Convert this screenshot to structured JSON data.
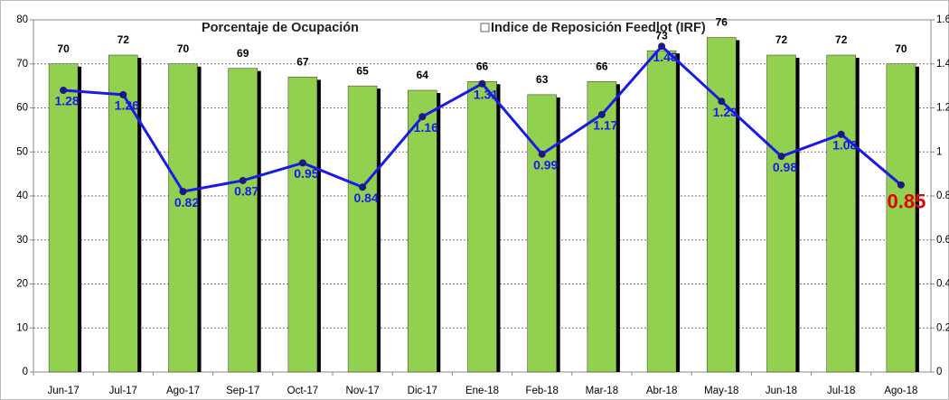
{
  "chart_data": {
    "type": "bar-line",
    "categories": [
      "Jun-17",
      "Jul-17",
      "Ago-17",
      "Sep-17",
      "Oct-17",
      "Nov-17",
      "Dic-17",
      "Ene-18",
      "Feb-18",
      "Mar-18",
      "Abr-18",
      "May-18",
      "Jun-18",
      "Jul-18",
      "Ago-18"
    ],
    "series": [
      {
        "name": "Porcentaje de Ocupación",
        "type": "bar",
        "color": "#92d050",
        "values": [
          70,
          72,
          70,
          69,
          67,
          65,
          64,
          66,
          63,
          66,
          73,
          76,
          72,
          72,
          70
        ]
      },
      {
        "name": "Indice de Reposición Feedlot (IRF)",
        "type": "line",
        "axis": "y2",
        "color": "#1a1ae6",
        "values": [
          1.28,
          1.26,
          0.82,
          0.87,
          0.95,
          0.84,
          1.16,
          1.31,
          0.99,
          1.17,
          1.48,
          1.23,
          0.98,
          1.08,
          0.85
        ]
      }
    ],
    "ylim": [
      0,
      80
    ],
    "yticks": [
      0,
      10,
      20,
      30,
      40,
      50,
      60,
      70,
      80
    ],
    "y2lim": [
      0,
      1.6
    ],
    "y2ticks": [
      0,
      0.2,
      0.4,
      0.6,
      0.8,
      1,
      1.2,
      1.4,
      1.6
    ],
    "grid": true
  }
}
